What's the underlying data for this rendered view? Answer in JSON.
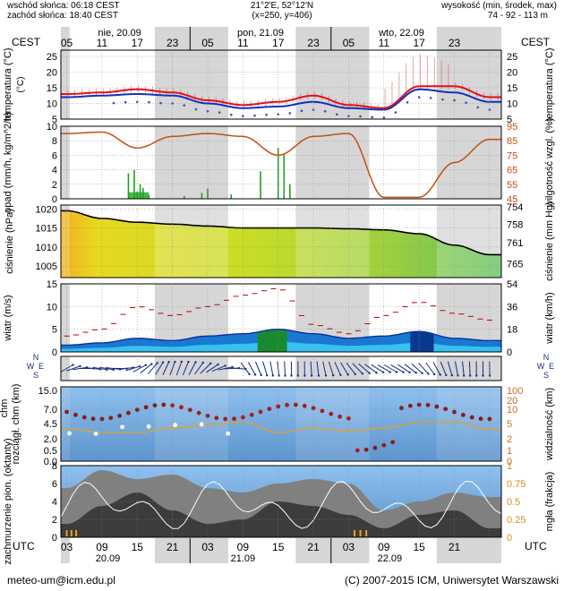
{
  "header": {
    "sunrise": "wschód słońca: 06:18 CEST",
    "sunset": "zachód słońca: 18:40 CEST",
    "coords": "21°2'E, 52°12'N",
    "grid": "(x=250, y=406)",
    "elevation_label": "wysokość (min, środek, max)",
    "elevation_values": "74 - 92 - 113 m"
  },
  "axes": {
    "cest_left": "CEST",
    "cest_right": "CEST",
    "utc_left": "UTC",
    "utc_right": "UTC",
    "cest_hours": [
      "05",
      "11",
      "17",
      "23",
      "05",
      "11",
      "17",
      "23",
      "05",
      "11",
      "17",
      "23"
    ],
    "utc_hours": [
      "03",
      "09",
      "15",
      "21",
      "03",
      "09",
      "15",
      "21",
      "03",
      "09",
      "15",
      "21"
    ],
    "day_labels_top": [
      "nie, 20.09",
      "pon, 21.09",
      "wto, 22.09"
    ],
    "day_labels_bottom": [
      "20.09",
      "21.09",
      "22.09"
    ]
  },
  "footer": {
    "email": "meteo-um@icm.edu.pl",
    "copyright": "(C) 2007-2015 ICM, Uniwersytet Warszawski"
  },
  "colors": {
    "temperature": "#e0101a",
    "dewpoint": "#1030c0",
    "humidity": "#c05010",
    "precip": "#20a020",
    "pressure": "#000000",
    "wind_mean": "#0a2fa0",
    "wind_gust": "#c00000",
    "visibility": "#e0a030",
    "cloud_base": "#8b1a1a",
    "night_shade": "#d6d6d6",
    "panel_sky": "#7fb4e6",
    "cloud_dark": "#3c3c3c",
    "cloud_mid": "#808080"
  },
  "chart_data": [
    {
      "type": "line",
      "panel": "temperature",
      "ylabel": "temperatura (°C)",
      "ylabel_right": "temperatura (°C)",
      "ylim": [
        5,
        27
      ],
      "yticks": [
        5,
        10,
        15,
        20,
        25
      ],
      "x_hours": [
        0,
        6,
        12,
        18,
        24,
        30,
        36,
        42,
        48,
        54,
        60,
        66,
        72
      ],
      "series": [
        {
          "name": "temperature",
          "values": [
            13.0,
            13.5,
            14.5,
            13.5,
            11.0,
            9.5,
            10.5,
            12.5,
            9.5,
            8.5,
            15.5,
            15.5,
            12.0
          ]
        },
        {
          "name": "dewpoint",
          "values": [
            12.0,
            12.5,
            13.0,
            12.5,
            10.0,
            8.5,
            9.0,
            10.5,
            8.5,
            8.0,
            14.5,
            13.5,
            10.5
          ]
        }
      ]
    },
    {
      "type": "bar",
      "panel": "precipitation_humidity",
      "ylabel": "opad (mm/h, kg/m^2/h)",
      "ylabel_right": "wilgotność wzgl. (%)",
      "ylim": [
        0,
        10
      ],
      "yticks": [
        0,
        2,
        4,
        6,
        8,
        10
      ],
      "ylim_right": [
        45,
        95
      ],
      "yticks_right": [
        45,
        55,
        65,
        75,
        85,
        95
      ],
      "x_hours": [
        0,
        6,
        12,
        18,
        24,
        30,
        36,
        42,
        48,
        54,
        60,
        66,
        72
      ],
      "series": [
        {
          "name": "humidity",
          "values": [
            90,
            91,
            80,
            88,
            90,
            88,
            75,
            88,
            90,
            46,
            46,
            70,
            86
          ]
        }
      ]
    },
    {
      "type": "area",
      "panel": "pressure",
      "ylabel": "ciśnienie (hPa)",
      "ylabel_right": "ciśnienie (mm Hg)",
      "ylim": [
        1002,
        1021
      ],
      "yticks": [
        1005,
        1010,
        1015,
        1020
      ],
      "yticks_right": [
        754,
        758,
        761,
        765
      ],
      "x_hours": [
        0,
        6,
        12,
        18,
        24,
        30,
        36,
        42,
        48,
        54,
        60,
        66,
        72
      ],
      "series": [
        {
          "name": "pressure",
          "values": [
            1019.5,
            1017.5,
            1016.5,
            1016.0,
            1015.5,
            1015.0,
            1015.0,
            1015.0,
            1014.8,
            1014.5,
            1013.5,
            1010.5,
            1008.0
          ]
        }
      ]
    },
    {
      "type": "line",
      "panel": "wind",
      "ylabel": "wiatr (m/s)",
      "ylabel_right": "wiatr (km/h)",
      "ylim": [
        0,
        15
      ],
      "yticks": [
        0,
        5,
        10,
        15
      ],
      "yticks_right": [
        0,
        18,
        36,
        54
      ],
      "x_hours": [
        0,
        6,
        12,
        18,
        24,
        30,
        36,
        42,
        48,
        54,
        60,
        66,
        72
      ],
      "series": [
        {
          "name": "wind_mean",
          "values": [
            1.5,
            2.0,
            3.0,
            2.5,
            3.5,
            4.0,
            5.0,
            4.0,
            3.0,
            3.5,
            4.5,
            3.0,
            2.5
          ]
        },
        {
          "name": "wind_gust",
          "values": [
            3.5,
            5.0,
            10.0,
            8.0,
            10.0,
            12.5,
            14.0,
            6.0,
            4.0,
            8.0,
            11.0,
            8.5,
            7.0
          ]
        }
      ]
    },
    {
      "type": "scatter",
      "panel": "wind_direction",
      "ylabel_left": "N, W, E, S",
      "ylabel_right": "N, W, E, S"
    },
    {
      "type": "scatter",
      "panel": "cloud_base_visibility",
      "ylabel": "rozciągł. chm (km)",
      "ylabel_right": "widzialność (km)",
      "ylim": [
        0,
        15
      ],
      "yticks": [
        "0.0",
        "0.5",
        "2.0",
        "4.5",
        "7.0",
        "15.0"
      ],
      "yticks_right": [
        0,
        1,
        2,
        5,
        10,
        20,
        100
      ],
      "x_hours": [
        0,
        6,
        12,
        18,
        24,
        30,
        36,
        42,
        48,
        54,
        60,
        66,
        72
      ],
      "series": [
        {
          "name": "visibility",
          "values": [
            9.5,
            7.0,
            7.0,
            10.0,
            12.0,
            14.0,
            7.0,
            10.0,
            8.0,
            10.0,
            14.0,
            14.0,
            9.0
          ]
        }
      ]
    },
    {
      "type": "area",
      "panel": "cloud_cover",
      "ylabel": "zachmurzenie pion. (oktanty)",
      "ylabel_right": "mgła (frakcja)",
      "ylim": [
        0,
        8
      ],
      "yticks": [
        0,
        2,
        4,
        6,
        8
      ],
      "yticks_right": [
        "0",
        "0.25",
        "0.5",
        "0.75",
        "1"
      ],
      "x_hours": [
        0,
        6,
        12,
        18,
        24,
        30,
        36,
        42,
        48,
        54,
        60,
        66,
        72
      ],
      "series": [
        {
          "name": "cloud_total",
          "values": [
            5.5,
            7.5,
            6.5,
            7.0,
            5.5,
            5.0,
            6.0,
            6.5,
            6.0,
            3.0,
            4.0,
            5.0,
            4.5
          ]
        },
        {
          "name": "cloud_low",
          "values": [
            1.5,
            3.5,
            5.0,
            3.0,
            1.5,
            2.0,
            4.0,
            3.5,
            2.5,
            1.0,
            2.5,
            3.0,
            1.0
          ]
        }
      ]
    }
  ]
}
